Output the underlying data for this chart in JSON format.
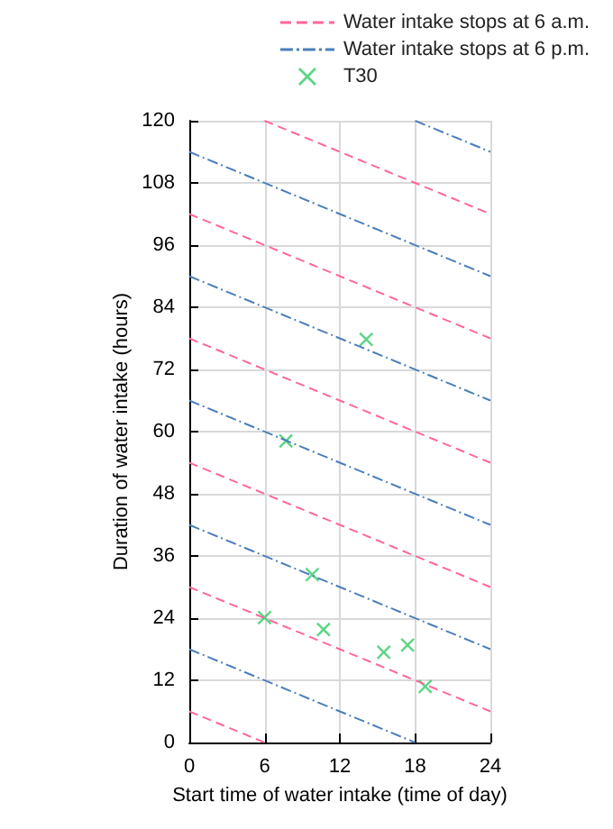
{
  "chart_data": {
    "type": "line",
    "xlabel": "Start time of water intake (time of day)",
    "ylabel": "Duration of water intake (hours)",
    "xlim": [
      0,
      24
    ],
    "xticks": [
      0,
      6,
      12,
      18,
      24
    ],
    "ylim": [
      0,
      120
    ],
    "yticks": [
      0,
      12,
      24,
      36,
      48,
      60,
      72,
      84,
      96,
      108,
      120
    ],
    "grid": true,
    "legend": "top right",
    "series": [
      {
        "name": "Water intake stops at 6 a.m.",
        "color": "#ff6699",
        "line_style": "dashed",
        "marker": "none",
        "x": [
          0,
          6
        ],
        "values": [
          6,
          0
        ]
      },
      {
        "color": "#ff6699",
        "line_style": "dashed",
        "marker": "none",
        "x": [
          0,
          24
        ],
        "values": [
          30,
          6
        ]
      },
      {
        "color": "#ff6699",
        "line_style": "dashed",
        "marker": "none",
        "x": [
          0,
          24
        ],
        "values": [
          54,
          30
        ]
      },
      {
        "color": "#ff6699",
        "line_style": "dashed",
        "marker": "none",
        "x": [
          0,
          24
        ],
        "values": [
          78,
          54
        ]
      },
      {
        "color": "#ff6699",
        "line_style": "dashed",
        "marker": "none",
        "x": [
          0,
          24
        ],
        "values": [
          102,
          78
        ]
      },
      {
        "color": "#ff6699",
        "line_style": "dashed",
        "marker": "none",
        "x": [
          6,
          24
        ],
        "values": [
          120,
          102
        ]
      },
      {
        "name": "Water intake stops at 6 p.m.",
        "color": "#4a7ebb",
        "line_style": "dashdot",
        "marker": "none",
        "x": [
          0,
          18
        ],
        "values": [
          18,
          0
        ]
      },
      {
        "color": "#4a7ebb",
        "line_style": "dashdot",
        "marker": "none",
        "x": [
          0,
          24
        ],
        "values": [
          42,
          18
        ]
      },
      {
        "color": "#4a7ebb",
        "line_style": "dashdot",
        "marker": "none",
        "x": [
          0,
          24
        ],
        "values": [
          66,
          42
        ]
      },
      {
        "color": "#4a7ebb",
        "line_style": "dashdot",
        "marker": "none",
        "x": [
          0,
          24
        ],
        "values": [
          90,
          66
        ]
      },
      {
        "color": "#4a7ebb",
        "line_style": "dashdot",
        "marker": "none",
        "x": [
          0,
          24
        ],
        "values": [
          114,
          90
        ]
      },
      {
        "color": "#4a7ebb",
        "line_style": "dashdot",
        "marker": "none",
        "x": [
          18,
          24
        ],
        "values": [
          120,
          114
        ]
      },
      {
        "name": "T30",
        "type": "scatter",
        "color": "#33cc66",
        "marker": "cross",
        "x": [
          6.0,
          7.7,
          9.8,
          10.7,
          14.1,
          15.5,
          17.4,
          18.8
        ],
        "values": [
          24.1,
          58.2,
          32.4,
          21.8,
          77.8,
          17.4,
          18.8,
          10.8
        ]
      }
    ]
  }
}
